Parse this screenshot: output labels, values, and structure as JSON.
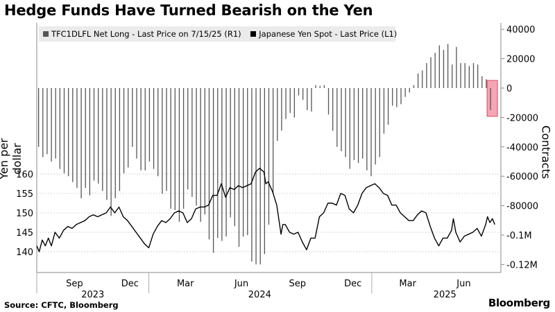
{
  "title": "Hedge Funds Have Turned Bearish on the Yen",
  "source": "Source: CFTC, Bloomberg",
  "brand": "Bloomberg",
  "legend": {
    "net_long": "TFC1DLFL Net Long - Last Price on 7/15/25 (R1)",
    "yen_spot": "Japanese Yen Spot - Last Price (L1)"
  },
  "colors": {
    "bars": "#555555",
    "line": "#000000",
    "highlight": "#f4a6b4",
    "highlight_border": "#d84a62",
    "grid": "#c8c8c8",
    "legend_bg": "#ebebeb"
  },
  "chart_data": {
    "type": "line+bar",
    "ylabel_left": "Yen per dollar",
    "ylabel_right": "Contracts",
    "left_axis": {
      "ticks": [
        140,
        145,
        150,
        155,
        160
      ],
      "range": [
        138.5,
        163
      ]
    },
    "right_axis": {
      "ticks": [
        40000,
        20000,
        0,
        -20000,
        -40000,
        -60000,
        -80000,
        -100000,
        -120000
      ],
      "tick_labels": [
        "40000",
        "20000",
        "0",
        "-20000",
        "-40000",
        "-60000",
        "-80000",
        "-0.1M",
        "-0.12M"
      ]
    },
    "x_ticks": [
      "Sep",
      "Dec",
      "Mar",
      "Jun",
      "Sep",
      "Dec",
      "Mar",
      "Jun"
    ],
    "year_labels": [
      "2023",
      "2024",
      "2025"
    ],
    "series": [
      {
        "name": "Japanese Yen Spot - Last Price (L1)",
        "kind": "line",
        "points": [
          [
            "2023-07-01",
            141.5
          ],
          [
            "2023-07-05",
            140.0
          ],
          [
            "2023-07-10",
            143.0
          ],
          [
            "2023-07-15",
            141.5
          ],
          [
            "2023-07-20",
            143.5
          ],
          [
            "2023-07-25",
            141.5
          ],
          [
            "2023-07-31",
            145.0
          ],
          [
            "2023-08-07",
            143.5
          ],
          [
            "2023-08-14",
            145.5
          ],
          [
            "2023-08-21",
            146.5
          ],
          [
            "2023-08-28",
            146.0
          ],
          [
            "2023-09-04",
            147.0
          ],
          [
            "2023-09-11",
            147.5
          ],
          [
            "2023-09-18",
            148.0
          ],
          [
            "2023-09-25",
            149.0
          ],
          [
            "2023-10-02",
            149.5
          ],
          [
            "2023-10-09",
            149.0
          ],
          [
            "2023-10-16",
            149.5
          ],
          [
            "2023-10-23",
            150.0
          ],
          [
            "2023-10-30",
            151.5
          ],
          [
            "2023-11-06",
            150.0
          ],
          [
            "2023-11-13",
            151.5
          ],
          [
            "2023-11-20",
            149.0
          ],
          [
            "2023-11-27",
            148.0
          ],
          [
            "2023-12-04",
            146.5
          ],
          [
            "2023-12-11",
            145.0
          ],
          [
            "2023-12-18",
            143.5
          ],
          [
            "2023-12-25",
            142.0
          ],
          [
            "2024-01-01",
            141.0
          ],
          [
            "2024-01-08",
            144.5
          ],
          [
            "2024-01-15",
            146.5
          ],
          [
            "2024-01-22",
            148.0
          ],
          [
            "2024-01-29",
            147.5
          ],
          [
            "2024-02-05",
            148.5
          ],
          [
            "2024-02-12",
            150.0
          ],
          [
            "2024-02-19",
            150.5
          ],
          [
            "2024-02-26",
            150.0
          ],
          [
            "2024-03-04",
            147.5
          ],
          [
            "2024-03-11",
            148.5
          ],
          [
            "2024-03-18",
            151.0
          ],
          [
            "2024-03-25",
            151.5
          ],
          [
            "2024-04-01",
            151.5
          ],
          [
            "2024-04-08",
            152.0
          ],
          [
            "2024-04-15",
            154.5
          ],
          [
            "2024-04-22",
            154.5
          ],
          [
            "2024-04-29",
            157.5
          ],
          [
            "2024-05-06",
            154.0
          ],
          [
            "2024-05-13",
            156.5
          ],
          [
            "2024-05-20",
            156.0
          ],
          [
            "2024-05-27",
            157.0
          ],
          [
            "2024-06-03",
            156.5
          ],
          [
            "2024-06-10",
            157.0
          ],
          [
            "2024-06-17",
            157.5
          ],
          [
            "2024-06-24",
            160.5
          ],
          [
            "2024-07-01",
            161.5
          ],
          [
            "2024-07-08",
            160.5
          ],
          [
            "2024-07-11",
            157.5
          ],
          [
            "2024-07-15",
            158.0
          ],
          [
            "2024-07-22",
            155.5
          ],
          [
            "2024-07-29",
            152.0
          ],
          [
            "2024-08-05",
            144.5
          ],
          [
            "2024-08-08",
            147.0
          ],
          [
            "2024-08-12",
            147.0
          ],
          [
            "2024-08-19",
            145.0
          ],
          [
            "2024-08-26",
            144.5
          ],
          [
            "2024-09-02",
            145.0
          ],
          [
            "2024-09-09",
            142.5
          ],
          [
            "2024-09-16",
            140.5
          ],
          [
            "2024-09-23",
            143.5
          ],
          [
            "2024-09-30",
            143.5
          ],
          [
            "2024-10-07",
            149.0
          ],
          [
            "2024-10-14",
            150.0
          ],
          [
            "2024-10-21",
            152.5
          ],
          [
            "2024-10-28",
            152.5
          ],
          [
            "2024-11-04",
            152.0
          ],
          [
            "2024-11-11",
            155.0
          ],
          [
            "2024-11-18",
            154.5
          ],
          [
            "2024-11-25",
            151.0
          ],
          [
            "2024-12-02",
            150.0
          ],
          [
            "2024-12-09",
            152.0
          ],
          [
            "2024-12-16",
            155.0
          ],
          [
            "2024-12-23",
            156.5
          ],
          [
            "2024-12-30",
            157.0
          ],
          [
            "2025-01-06",
            157.5
          ],
          [
            "2025-01-13",
            156.5
          ],
          [
            "2025-01-20",
            155.0
          ],
          [
            "2025-01-27",
            154.5
          ],
          [
            "2025-02-03",
            152.0
          ],
          [
            "2025-02-10",
            152.0
          ],
          [
            "2025-02-17",
            150.0
          ],
          [
            "2025-02-24",
            149.0
          ],
          [
            "2025-03-03",
            148.0
          ],
          [
            "2025-03-10",
            148.0
          ],
          [
            "2025-03-17",
            149.5
          ],
          [
            "2025-03-24",
            150.5
          ],
          [
            "2025-03-31",
            150.0
          ],
          [
            "2025-04-07",
            146.5
          ],
          [
            "2025-04-14",
            143.5
          ],
          [
            "2025-04-21",
            141.5
          ],
          [
            "2025-04-28",
            143.5
          ],
          [
            "2025-05-05",
            143.5
          ],
          [
            "2025-05-12",
            145.5
          ],
          [
            "2025-05-15",
            148.5
          ],
          [
            "2025-05-19",
            145.0
          ],
          [
            "2025-05-26",
            142.5
          ],
          [
            "2025-06-02",
            144.0
          ],
          [
            "2025-06-09",
            144.5
          ],
          [
            "2025-06-16",
            145.0
          ],
          [
            "2025-06-23",
            146.0
          ],
          [
            "2025-06-30",
            144.0
          ],
          [
            "2025-07-07",
            147.0
          ],
          [
            "2025-07-10",
            149.0
          ],
          [
            "2025-07-14",
            147.5
          ],
          [
            "2025-07-18",
            148.5
          ],
          [
            "2025-07-22",
            147.0
          ]
        ]
      },
      {
        "name": "TFC1DLFL Net Long - Last Price on 7/15/25 (R1)",
        "kind": "bar",
        "points": [
          [
            "2023-07-04",
            -40000
          ],
          [
            "2023-07-11",
            -47000
          ],
          [
            "2023-07-18",
            -45000
          ],
          [
            "2023-07-25",
            -50000
          ],
          [
            "2023-08-01",
            -48000
          ],
          [
            "2023-08-08",
            -55000
          ],
          [
            "2023-08-15",
            -58000
          ],
          [
            "2023-08-22",
            -60000
          ],
          [
            "2023-08-29",
            -64000
          ],
          [
            "2023-09-05",
            -68000
          ],
          [
            "2023-09-12",
            -75000
          ],
          [
            "2023-09-19",
            -68000
          ],
          [
            "2023-09-26",
            -73000
          ],
          [
            "2023-10-03",
            -63000
          ],
          [
            "2023-10-10",
            -65000
          ],
          [
            "2023-10-17",
            -70000
          ],
          [
            "2023-10-24",
            -76000
          ],
          [
            "2023-10-31",
            -87000
          ],
          [
            "2023-11-07",
            -75000
          ],
          [
            "2023-11-14",
            -70000
          ],
          [
            "2023-11-21",
            -58000
          ],
          [
            "2023-11-28",
            -54000
          ],
          [
            "2023-12-05",
            -40000
          ],
          [
            "2023-12-12",
            -48000
          ],
          [
            "2023-12-19",
            -56000
          ],
          [
            "2023-12-26",
            -56000
          ],
          [
            "2024-01-02",
            -50000
          ],
          [
            "2024-01-09",
            -55000
          ],
          [
            "2024-01-16",
            -60000
          ],
          [
            "2024-01-23",
            -72000
          ],
          [
            "2024-01-30",
            -70000
          ],
          [
            "2024-02-06",
            -82000
          ],
          [
            "2024-02-13",
            -83000
          ],
          [
            "2024-02-20",
            -91000
          ],
          [
            "2024-02-27",
            -82000
          ],
          [
            "2024-03-05",
            -69000
          ],
          [
            "2024-03-12",
            -74000
          ],
          [
            "2024-03-19",
            -80000
          ],
          [
            "2024-03-26",
            -91000
          ],
          [
            "2024-04-02",
            -86000
          ],
          [
            "2024-04-09",
            -103000
          ],
          [
            "2024-04-16",
            -112000
          ],
          [
            "2024-04-23",
            -102000
          ],
          [
            "2024-04-30",
            -104000
          ],
          [
            "2024-05-07",
            -101000
          ],
          [
            "2024-05-14",
            -88000
          ],
          [
            "2024-05-21",
            -94000
          ],
          [
            "2024-05-28",
            -108000
          ],
          [
            "2024-06-04",
            -101000
          ],
          [
            "2024-06-11",
            -100000
          ],
          [
            "2024-06-18",
            -118000
          ],
          [
            "2024-06-25",
            -120000
          ],
          [
            "2024-07-02",
            -120000
          ],
          [
            "2024-07-09",
            -113000
          ],
          [
            "2024-07-16",
            -93000
          ],
          [
            "2024-07-23",
            -72000
          ],
          [
            "2024-07-30",
            -36000
          ],
          [
            "2024-08-06",
            -29000
          ],
          [
            "2024-08-13",
            -21000
          ],
          [
            "2024-08-20",
            -17000
          ],
          [
            "2024-08-27",
            -20000
          ],
          [
            "2024-09-03",
            -5000
          ],
          [
            "2024-09-10",
            -8000
          ],
          [
            "2024-09-17",
            -15000
          ],
          [
            "2024-09-24",
            -16000
          ],
          [
            "2024-10-01",
            2000
          ],
          [
            "2024-10-08",
            1500
          ],
          [
            "2024-10-15",
            2000
          ],
          [
            "2024-10-22",
            -18000
          ],
          [
            "2024-10-29",
            -29000
          ],
          [
            "2024-11-05",
            -40000
          ],
          [
            "2024-11-12",
            -43000
          ],
          [
            "2024-11-19",
            -47000
          ],
          [
            "2024-11-26",
            -55000
          ],
          [
            "2024-12-03",
            -49000
          ],
          [
            "2024-12-10",
            -51000
          ],
          [
            "2024-12-17",
            -48000
          ],
          [
            "2024-12-24",
            -56000
          ],
          [
            "2024-12-31",
            -60000
          ],
          [
            "2025-01-07",
            -52000
          ],
          [
            "2025-01-14",
            -47000
          ],
          [
            "2025-01-21",
            -31000
          ],
          [
            "2025-01-28",
            -25000
          ],
          [
            "2025-02-04",
            -12000
          ],
          [
            "2025-02-11",
            -13000
          ],
          [
            "2025-02-18",
            -11000
          ],
          [
            "2025-02-25",
            -6000
          ],
          [
            "2025-03-04",
            -3000
          ],
          [
            "2025-03-11",
            2000
          ],
          [
            "2025-03-18",
            10000
          ],
          [
            "2025-03-25",
            12000
          ],
          [
            "2025-04-01",
            17000
          ],
          [
            "2025-04-08",
            21000
          ],
          [
            "2025-04-15",
            24000
          ],
          [
            "2025-04-22",
            29000
          ],
          [
            "2025-04-29",
            26000
          ],
          [
            "2025-05-06",
            30000
          ],
          [
            "2025-05-13",
            16000
          ],
          [
            "2025-05-20",
            28000
          ],
          [
            "2025-05-27",
            17000
          ],
          [
            "2025-06-03",
            17000
          ],
          [
            "2025-06-10",
            15000
          ],
          [
            "2025-06-17",
            17000
          ],
          [
            "2025-06-24",
            16000
          ],
          [
            "2025-07-01",
            8000
          ],
          [
            "2025-07-08",
            6000
          ],
          [
            "2025-07-15",
            -15000
          ]
        ]
      }
    ]
  }
}
